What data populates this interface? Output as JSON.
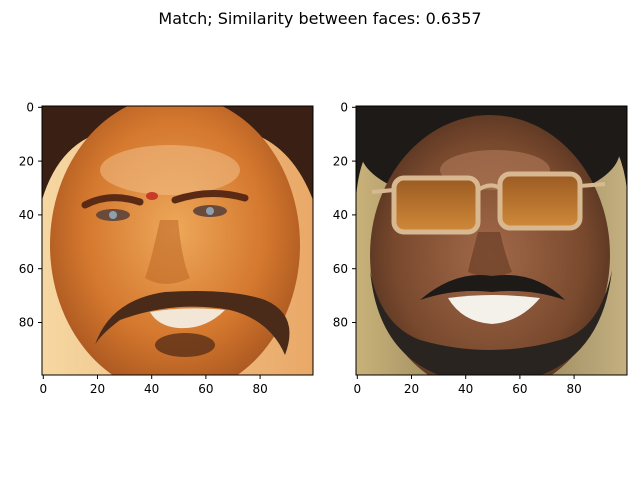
{
  "figure": {
    "title": "Match; Similarity between faces: 0.6357"
  },
  "panels": [
    {
      "name": "left-face-panel",
      "x_ticks": [
        "0",
        "20",
        "40",
        "60",
        "80"
      ],
      "y_ticks": [
        "0",
        "20",
        "40",
        "60",
        "80"
      ],
      "palette": {
        "skin": "#d4782e",
        "skin_light": "#eea85a",
        "hair": "#3a2014",
        "mustache": "#4a2a18",
        "background": "#f3c98a",
        "teeth": "#f2e6d6",
        "forehead_mark": "#c93a2a"
      }
    },
    {
      "name": "right-face-panel",
      "x_ticks": [
        "0",
        "20",
        "40",
        "60",
        "80"
      ],
      "y_ticks": [
        "0",
        "20",
        "40",
        "60",
        "80"
      ],
      "palette": {
        "skin": "#7a4a2e",
        "skin_light": "#a3694a",
        "hair": "#1e1a18",
        "beard": "#2a2420",
        "background": "#b9a16a",
        "teeth": "#f4f0ea",
        "glasses_frame": "#d8b890",
        "glasses_lens": "#b8742e"
      }
    }
  ]
}
